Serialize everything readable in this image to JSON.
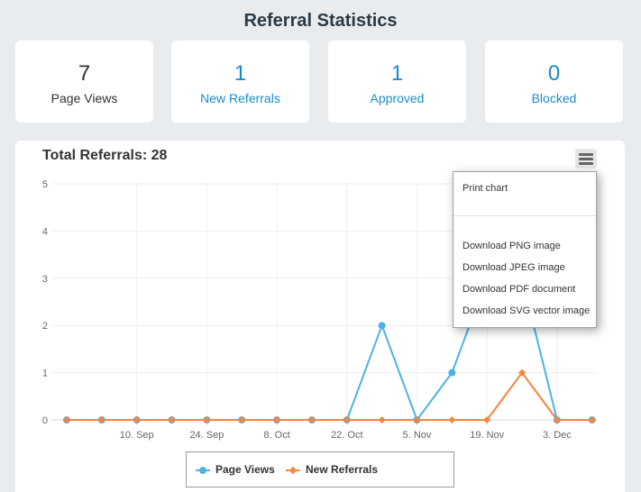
{
  "page": {
    "title": "Referral Statistics"
  },
  "stats": [
    {
      "value": "7",
      "label": "Page Views"
    },
    {
      "value": "1",
      "label": "New Referrals"
    },
    {
      "value": "1",
      "label": "Approved"
    },
    {
      "value": "0",
      "label": "Blocked"
    }
  ],
  "chart": {
    "title": "Total Referrals: 28",
    "menu_icon": "hamburger-menu-icon",
    "legend": [
      {
        "label": "Page Views",
        "color": "#4cb3e6",
        "marker": "circle"
      },
      {
        "label": "New Referrals",
        "color": "#f5853f",
        "marker": "diamond"
      }
    ]
  },
  "chart_data": {
    "type": "line",
    "title": "Total Referrals: 28",
    "xlabel": "",
    "ylabel": "",
    "ylim": [
      0,
      5
    ],
    "yticks": [
      "0",
      "1",
      "2",
      "3",
      "4",
      "5"
    ],
    "x": [
      "2024-08-27",
      "2024-09-03",
      "2024-09-10",
      "2024-09-17",
      "2024-09-24",
      "2024-10-01",
      "2024-10-08",
      "2024-10-15",
      "2024-10-22",
      "2024-10-29",
      "2024-11-05",
      "2024-11-12",
      "2024-11-19",
      "2024-11-26",
      "2024-12-03",
      "2024-12-10"
    ],
    "xtick_labels": [
      "10. Sep",
      "24. Sep",
      "8. Oct",
      "22. Oct",
      "5. Nov",
      "19. Nov",
      "3. Dec"
    ],
    "grid": true,
    "legend_position": "bottom-center",
    "series": [
      {
        "name": "Page Views",
        "color": "#4cb3e6",
        "marker": "circle",
        "values": [
          0,
          0,
          0,
          0,
          0,
          0,
          0,
          0,
          0,
          2,
          0,
          1,
          3,
          3,
          0,
          0
        ]
      },
      {
        "name": "New Referrals",
        "color": "#f5853f",
        "marker": "diamond",
        "values": [
          0,
          0,
          0,
          0,
          0,
          0,
          0,
          0,
          0,
          0,
          0,
          0,
          0,
          1,
          0,
          0
        ]
      }
    ]
  },
  "context_menu": {
    "items": [
      "Print chart",
      "Download PNG image",
      "Download JPEG image",
      "Download PDF document",
      "Download SVG vector image"
    ]
  }
}
